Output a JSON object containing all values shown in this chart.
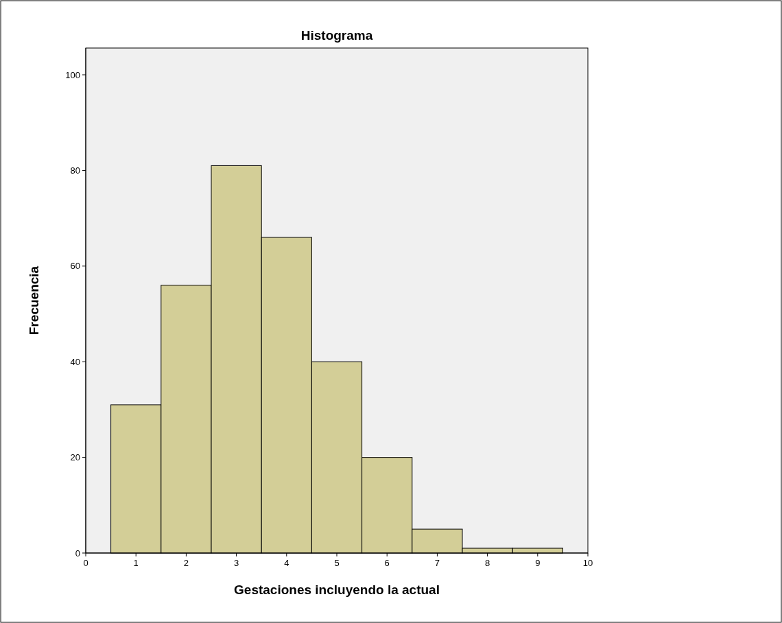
{
  "chart_data": {
    "type": "histogram",
    "title": "Histograma",
    "xlabel": "Gestaciones incluyendo la actual",
    "ylabel": "Frecuencia",
    "bins": [
      0.5,
      1.5,
      2.5,
      3.5,
      4.5,
      5.5,
      6.5,
      7.5,
      8.5,
      9.5
    ],
    "values": [
      31,
      56,
      81,
      66,
      40,
      20,
      5,
      1,
      1
    ],
    "color": "#d3ce97",
    "xlim": [
      0,
      10
    ],
    "xticks": [
      0,
      1,
      2,
      3,
      4,
      5,
      6,
      7,
      8,
      9,
      10
    ],
    "ylim": [
      0,
      105.6
    ],
    "yticks": [
      0,
      20,
      40,
      60,
      80,
      100
    ],
    "grid": false
  }
}
